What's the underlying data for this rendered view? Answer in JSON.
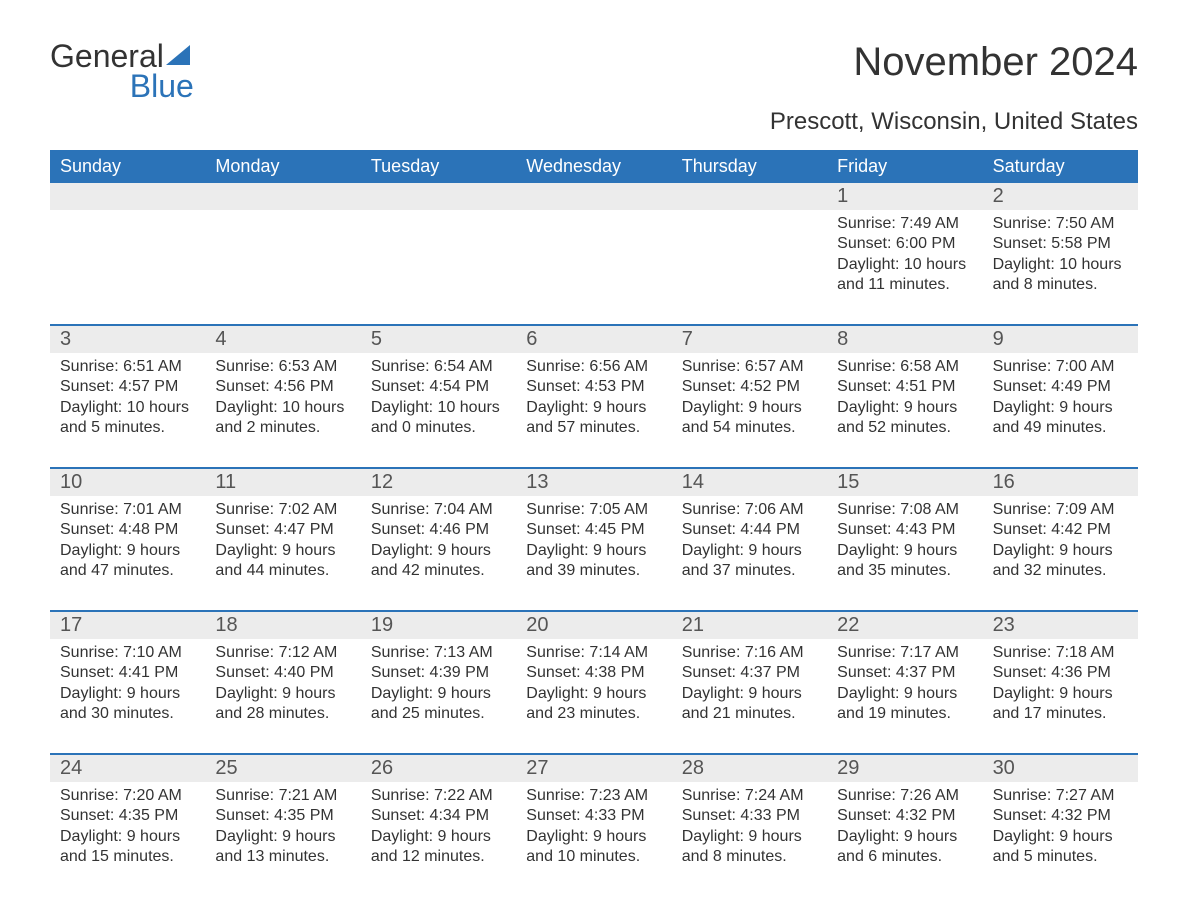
{
  "logo": {
    "word1": "General",
    "word2": "Blue",
    "sail_color": "#2b73b8"
  },
  "title": "November 2024",
  "subtitle": "Prescott, Wisconsin, United States",
  "colors": {
    "header_bg": "#2b73b8",
    "header_text": "#ffffff",
    "daynum_bg": "#ececec",
    "week_border": "#2b73b8",
    "body_text": "#333333",
    "daynum_text": "#555555",
    "page_bg": "#ffffff"
  },
  "fonts": {
    "title_size_pt": 30,
    "subtitle_size_pt": 18,
    "dow_size_pt": 14,
    "daynum_size_pt": 15,
    "body_size_pt": 12
  },
  "days_of_week": [
    "Sunday",
    "Monday",
    "Tuesday",
    "Wednesday",
    "Thursday",
    "Friday",
    "Saturday"
  ],
  "weeks": [
    [
      {
        "num": "",
        "sunrise": "",
        "sunset": "",
        "daylight": ""
      },
      {
        "num": "",
        "sunrise": "",
        "sunset": "",
        "daylight": ""
      },
      {
        "num": "",
        "sunrise": "",
        "sunset": "",
        "daylight": ""
      },
      {
        "num": "",
        "sunrise": "",
        "sunset": "",
        "daylight": ""
      },
      {
        "num": "",
        "sunrise": "",
        "sunset": "",
        "daylight": ""
      },
      {
        "num": "1",
        "sunrise": "Sunrise: 7:49 AM",
        "sunset": "Sunset: 6:00 PM",
        "daylight": "Daylight: 10 hours and 11 minutes."
      },
      {
        "num": "2",
        "sunrise": "Sunrise: 7:50 AM",
        "sunset": "Sunset: 5:58 PM",
        "daylight": "Daylight: 10 hours and 8 minutes."
      }
    ],
    [
      {
        "num": "3",
        "sunrise": "Sunrise: 6:51 AM",
        "sunset": "Sunset: 4:57 PM",
        "daylight": "Daylight: 10 hours and 5 minutes."
      },
      {
        "num": "4",
        "sunrise": "Sunrise: 6:53 AM",
        "sunset": "Sunset: 4:56 PM",
        "daylight": "Daylight: 10 hours and 2 minutes."
      },
      {
        "num": "5",
        "sunrise": "Sunrise: 6:54 AM",
        "sunset": "Sunset: 4:54 PM",
        "daylight": "Daylight: 10 hours and 0 minutes."
      },
      {
        "num": "6",
        "sunrise": "Sunrise: 6:56 AM",
        "sunset": "Sunset: 4:53 PM",
        "daylight": "Daylight: 9 hours and 57 minutes."
      },
      {
        "num": "7",
        "sunrise": "Sunrise: 6:57 AM",
        "sunset": "Sunset: 4:52 PM",
        "daylight": "Daylight: 9 hours and 54 minutes."
      },
      {
        "num": "8",
        "sunrise": "Sunrise: 6:58 AM",
        "sunset": "Sunset: 4:51 PM",
        "daylight": "Daylight: 9 hours and 52 minutes."
      },
      {
        "num": "9",
        "sunrise": "Sunrise: 7:00 AM",
        "sunset": "Sunset: 4:49 PM",
        "daylight": "Daylight: 9 hours and 49 minutes."
      }
    ],
    [
      {
        "num": "10",
        "sunrise": "Sunrise: 7:01 AM",
        "sunset": "Sunset: 4:48 PM",
        "daylight": "Daylight: 9 hours and 47 minutes."
      },
      {
        "num": "11",
        "sunrise": "Sunrise: 7:02 AM",
        "sunset": "Sunset: 4:47 PM",
        "daylight": "Daylight: 9 hours and 44 minutes."
      },
      {
        "num": "12",
        "sunrise": "Sunrise: 7:04 AM",
        "sunset": "Sunset: 4:46 PM",
        "daylight": "Daylight: 9 hours and 42 minutes."
      },
      {
        "num": "13",
        "sunrise": "Sunrise: 7:05 AM",
        "sunset": "Sunset: 4:45 PM",
        "daylight": "Daylight: 9 hours and 39 minutes."
      },
      {
        "num": "14",
        "sunrise": "Sunrise: 7:06 AM",
        "sunset": "Sunset: 4:44 PM",
        "daylight": "Daylight: 9 hours and 37 minutes."
      },
      {
        "num": "15",
        "sunrise": "Sunrise: 7:08 AM",
        "sunset": "Sunset: 4:43 PM",
        "daylight": "Daylight: 9 hours and 35 minutes."
      },
      {
        "num": "16",
        "sunrise": "Sunrise: 7:09 AM",
        "sunset": "Sunset: 4:42 PM",
        "daylight": "Daylight: 9 hours and 32 minutes."
      }
    ],
    [
      {
        "num": "17",
        "sunrise": "Sunrise: 7:10 AM",
        "sunset": "Sunset: 4:41 PM",
        "daylight": "Daylight: 9 hours and 30 minutes."
      },
      {
        "num": "18",
        "sunrise": "Sunrise: 7:12 AM",
        "sunset": "Sunset: 4:40 PM",
        "daylight": "Daylight: 9 hours and 28 minutes."
      },
      {
        "num": "19",
        "sunrise": "Sunrise: 7:13 AM",
        "sunset": "Sunset: 4:39 PM",
        "daylight": "Daylight: 9 hours and 25 minutes."
      },
      {
        "num": "20",
        "sunrise": "Sunrise: 7:14 AM",
        "sunset": "Sunset: 4:38 PM",
        "daylight": "Daylight: 9 hours and 23 minutes."
      },
      {
        "num": "21",
        "sunrise": "Sunrise: 7:16 AM",
        "sunset": "Sunset: 4:37 PM",
        "daylight": "Daylight: 9 hours and 21 minutes."
      },
      {
        "num": "22",
        "sunrise": "Sunrise: 7:17 AM",
        "sunset": "Sunset: 4:37 PM",
        "daylight": "Daylight: 9 hours and 19 minutes."
      },
      {
        "num": "23",
        "sunrise": "Sunrise: 7:18 AM",
        "sunset": "Sunset: 4:36 PM",
        "daylight": "Daylight: 9 hours and 17 minutes."
      }
    ],
    [
      {
        "num": "24",
        "sunrise": "Sunrise: 7:20 AM",
        "sunset": "Sunset: 4:35 PM",
        "daylight": "Daylight: 9 hours and 15 minutes."
      },
      {
        "num": "25",
        "sunrise": "Sunrise: 7:21 AM",
        "sunset": "Sunset: 4:35 PM",
        "daylight": "Daylight: 9 hours and 13 minutes."
      },
      {
        "num": "26",
        "sunrise": "Sunrise: 7:22 AM",
        "sunset": "Sunset: 4:34 PM",
        "daylight": "Daylight: 9 hours and 12 minutes."
      },
      {
        "num": "27",
        "sunrise": "Sunrise: 7:23 AM",
        "sunset": "Sunset: 4:33 PM",
        "daylight": "Daylight: 9 hours and 10 minutes."
      },
      {
        "num": "28",
        "sunrise": "Sunrise: 7:24 AM",
        "sunset": "Sunset: 4:33 PM",
        "daylight": "Daylight: 9 hours and 8 minutes."
      },
      {
        "num": "29",
        "sunrise": "Sunrise: 7:26 AM",
        "sunset": "Sunset: 4:32 PM",
        "daylight": "Daylight: 9 hours and 6 minutes."
      },
      {
        "num": "30",
        "sunrise": "Sunrise: 7:27 AM",
        "sunset": "Sunset: 4:32 PM",
        "daylight": "Daylight: 9 hours and 5 minutes."
      }
    ]
  ]
}
